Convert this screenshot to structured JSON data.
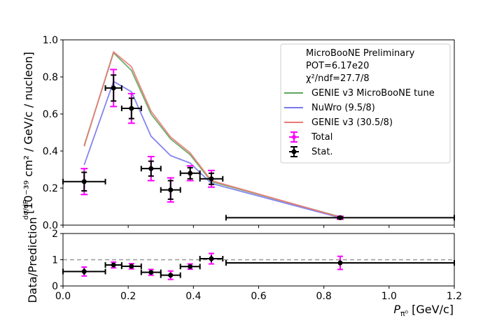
{
  "chart_data": {
    "type": "line",
    "x": [
      0.065,
      0.155,
      0.21,
      0.27,
      0.33,
      0.39,
      0.455,
      0.85
    ],
    "xerr": [
      0.065,
      0.025,
      0.03,
      0.03,
      0.03,
      0.03,
      0.035,
      0.35
    ],
    "xlim": [
      0.0,
      1.2
    ],
    "xticks": [
      "0.0",
      "0.2",
      "0.4",
      "0.6",
      "0.8",
      "1.0",
      "1.2"
    ],
    "xlabel": "P",
    "xlabel_sub": "π⁰",
    "xlabel_unit": " [GeV/c]",
    "series": [
      {
        "name": "GENIE v3 MicroBooNE tune",
        "color": "#5aa75a",
        "values": [
          0.43,
          0.93,
          0.835,
          0.6,
          0.465,
          0.38,
          0.235,
          0.045
        ]
      },
      {
        "name": "NuWro (9.5/8)",
        "color": "#7777ee",
        "values": [
          0.325,
          0.775,
          0.72,
          0.48,
          0.375,
          0.335,
          0.225,
          0.04
        ]
      },
      {
        "name": "GENIE v3 (30.5/8)",
        "color": "#ee7777",
        "values": [
          0.425,
          0.935,
          0.855,
          0.615,
          0.475,
          0.39,
          0.24,
          0.043
        ]
      }
    ],
    "data": {
      "y": [
        0.235,
        0.74,
        0.63,
        0.305,
        0.19,
        0.28,
        0.25,
        0.04
      ],
      "stat_err": [
        0.05,
        0.07,
        0.055,
        0.04,
        0.05,
        0.03,
        0.03,
        0.005
      ],
      "total_err": [
        0.07,
        0.1,
        0.08,
        0.065,
        0.065,
        0.04,
        0.045,
        0.008
      ],
      "total_label": "Total",
      "stat_label": "Stat.",
      "total_color": "#ff00ff",
      "stat_color": "#000000"
    },
    "top_panel": {
      "ylim": [
        0.0,
        1.0
      ],
      "yticks": [
        "0.0",
        "0.2",
        "0.4",
        "0.6",
        "0.8",
        "1.0"
      ],
      "ylabel": "[10⁻³⁹ cm² / GeV/c / nucleon]",
      "ylabel_prefix": "dσ/dP"
    },
    "ratio_panel": {
      "ylim": [
        0,
        2
      ],
      "yticks": [
        "0",
        "1",
        "2"
      ],
      "ylabel": "Data/Prediction",
      "values": [
        0.55,
        0.8,
        0.75,
        0.52,
        0.41,
        0.74,
        1.04,
        0.88
      ],
      "stat_err": [
        0.12,
        0.08,
        0.07,
        0.08,
        0.1,
        0.08,
        0.13,
        0.1
      ],
      "total_err": [
        0.17,
        0.11,
        0.1,
        0.11,
        0.16,
        0.1,
        0.2,
        0.25
      ],
      "reference": 1.0,
      "reference_color": "#999999"
    },
    "legend": {
      "placement": "top-right",
      "header": [
        "MicroBooNE Preliminary",
        "POT=6.17e20",
        "χ²/ndf=27.7/8"
      ]
    }
  }
}
